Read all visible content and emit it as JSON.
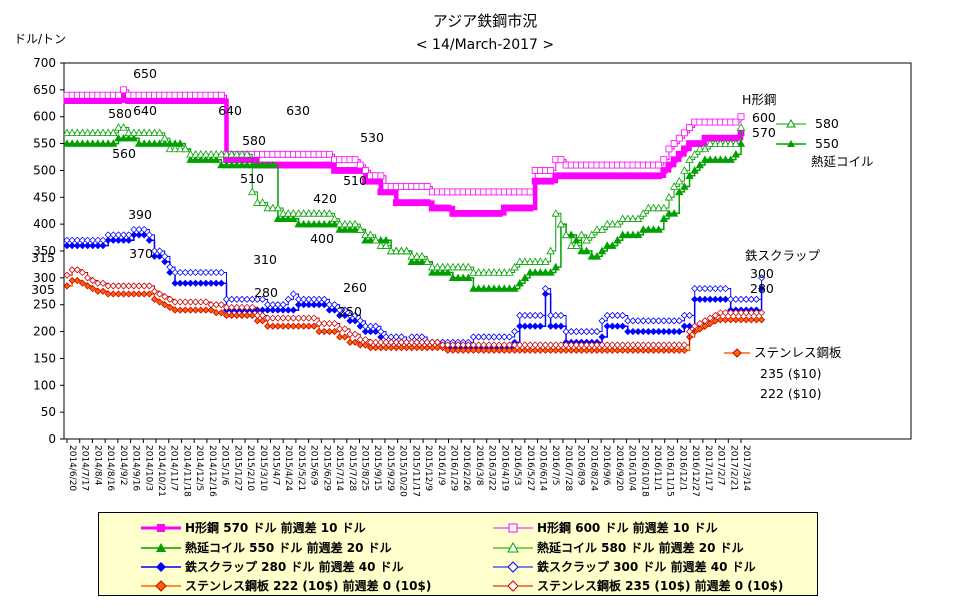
{
  "title": "アジア鉄鋼市況",
  "subtitle": "< 14/March-2017 >",
  "ylabel": "ドル/トン",
  "colors": {
    "h_beam": "#ff00ff",
    "hot_coil": "#00a000",
    "scrap": "#0000ff",
    "stainless": "#ff6600",
    "stainless_edge": "#cc0000",
    "legend_bg": "#ffffcc"
  },
  "chart_data": {
    "type": "line",
    "title": "アジア鉄鋼市況",
    "subtitle": "< 14/March-2017 >",
    "ylabel": "ドル/トン",
    "ylim": [
      0,
      700
    ],
    "yticks": [
      0,
      50,
      100,
      150,
      200,
      250,
      300,
      350,
      400,
      450,
      500,
      550,
      600,
      650,
      700
    ],
    "grid": false,
    "legend_position": "bottom",
    "x_tick_labels": [
      "2014/6/20",
      "2014/7/17",
      "2014/8/4",
      "2014/8/16",
      "2014/9/2",
      "2014/9/16",
      "2014/10/3",
      "2014/10/21",
      "2014/11/7",
      "2014/11/18",
      "2014/12/5",
      "2014/12/16",
      "2015/1/6",
      "2015/1/27",
      "2015/2/10",
      "2015/3/10",
      "2015/4/7",
      "2015/4/24",
      "2015/5/21",
      "2015/6/9",
      "2015/6/29",
      "2015/7/14",
      "2015/7/28",
      "2015/8/25",
      "2015/9/15",
      "2015/9/29",
      "2015/10/20",
      "2015/11/17",
      "2015/12/9",
      "2016/1/9",
      "2016/1/29",
      "2016/2/26",
      "2016/3/8",
      "2016/3/22",
      "2016/4/19",
      "2016/5/3",
      "2016/5/27",
      "2016/6/14",
      "2016/7/5",
      "2016/7/28",
      "2016/8/9",
      "2016/8/24",
      "2016/9/6",
      "2016/9/20",
      "2016/10/4",
      "2016/10/18",
      "2016/11/1",
      "2016/11/15",
      "2016/12/1",
      "2016/12/27",
      "2017/1/17",
      "2017/2/7",
      "2017/2/21",
      "2017/3/14"
    ],
    "series": [
      {
        "name": "H形鋼 570 ドル 前週差 10 ドル",
        "values": [
          630,
          630,
          630,
          630,
          630,
          630,
          630,
          630,
          630,
          630,
          630,
          640,
          630,
          630,
          630,
          630,
          630,
          630,
          630,
          630,
          630,
          630,
          630,
          630,
          630,
          630,
          630,
          630,
          630,
          630,
          630,
          520,
          520,
          520,
          520,
          520,
          520,
          510,
          510,
          510,
          510,
          510,
          510,
          510,
          510,
          510,
          510,
          510,
          510,
          510,
          510,
          510,
          500,
          500,
          500,
          500,
          500,
          500,
          480,
          480,
          480,
          460,
          460,
          460,
          440,
          440,
          440,
          440,
          440,
          440,
          440,
          430,
          430,
          430,
          430,
          420,
          420,
          420,
          420,
          420,
          420,
          420,
          420,
          420,
          420,
          430,
          430,
          430,
          430,
          430,
          430,
          480,
          480,
          480,
          480,
          490,
          490,
          490,
          490,
          490,
          490,
          490,
          490,
          490,
          490,
          490,
          490,
          490,
          490,
          490,
          490,
          490,
          490,
          490,
          490,
          490,
          500,
          510,
          520,
          530,
          540,
          550,
          550,
          550,
          560,
          560,
          560,
          560,
          560,
          560,
          560,
          570
        ]
      },
      {
        "name": "H形鋼 600 ドル 前週差 10 ドル",
        "values": [
          640,
          640,
          640,
          640,
          640,
          640,
          640,
          640,
          640,
          640,
          640,
          650,
          640,
          640,
          640,
          640,
          640,
          640,
          640,
          640,
          640,
          640,
          640,
          640,
          640,
          640,
          640,
          640,
          640,
          640,
          640,
          530,
          530,
          530,
          530,
          530,
          530,
          530,
          530,
          530,
          530,
          530,
          530,
          530,
          530,
          530,
          530,
          530,
          530,
          530,
          530,
          530,
          520,
          520,
          520,
          520,
          520,
          510,
          500,
          490,
          490,
          490,
          470,
          470,
          470,
          470,
          470,
          470,
          470,
          470,
          470,
          460,
          460,
          460,
          460,
          460,
          460,
          460,
          460,
          460,
          460,
          460,
          460,
          460,
          460,
          460,
          460,
          460,
          460,
          460,
          460,
          500,
          500,
          500,
          500,
          520,
          520,
          510,
          510,
          510,
          510,
          510,
          510,
          510,
          510,
          510,
          510,
          510,
          510,
          510,
          510,
          510,
          510,
          510,
          510,
          510,
          520,
          540,
          550,
          560,
          570,
          580,
          590,
          590,
          590,
          590,
          590,
          590,
          590,
          590,
          590,
          600
        ]
      },
      {
        "name": "熱延コイル 550 ドル 前週差 20 ドル",
        "values": [
          550,
          550,
          550,
          550,
          550,
          550,
          550,
          550,
          550,
          550,
          560,
          560,
          560,
          560,
          550,
          550,
          550,
          550,
          550,
          550,
          550,
          550,
          550,
          540,
          520,
          520,
          520,
          520,
          520,
          520,
          510,
          510,
          510,
          510,
          510,
          510,
          510,
          510,
          510,
          510,
          510,
          410,
          410,
          410,
          410,
          400,
          400,
          400,
          400,
          400,
          400,
          400,
          400,
          390,
          390,
          390,
          390,
          390,
          370,
          370,
          370,
          370,
          370,
          350,
          350,
          350,
          350,
          330,
          330,
          330,
          330,
          310,
          310,
          310,
          310,
          300,
          300,
          300,
          300,
          280,
          280,
          280,
          280,
          280,
          280,
          280,
          280,
          280,
          290,
          300,
          310,
          310,
          310,
          310,
          310,
          320,
          400,
          380,
          380,
          370,
          350,
          350,
          340,
          340,
          350,
          360,
          360,
          370,
          380,
          380,
          380,
          380,
          390,
          390,
          390,
          390,
          410,
          420,
          420,
          460,
          470,
          490,
          500,
          510,
          520,
          520,
          520,
          520,
          520,
          520,
          530,
          550
        ]
      },
      {
        "name": "熱延コイル 580 ドル 前週差 20 ドル",
        "values": [
          570,
          570,
          570,
          570,
          570,
          570,
          570,
          570,
          570,
          570,
          580,
          580,
          570,
          570,
          570,
          570,
          570,
          570,
          570,
          560,
          540,
          540,
          540,
          540,
          530,
          530,
          530,
          530,
          530,
          530,
          530,
          530,
          530,
          530,
          530,
          530,
          460,
          440,
          440,
          430,
          430,
          430,
          420,
          420,
          420,
          420,
          420,
          420,
          420,
          420,
          420,
          420,
          410,
          400,
          400,
          400,
          400,
          390,
          380,
          380,
          370,
          360,
          360,
          350,
          350,
          350,
          350,
          340,
          340,
          340,
          330,
          320,
          320,
          320,
          320,
          320,
          320,
          320,
          320,
          310,
          310,
          310,
          310,
          310,
          310,
          310,
          310,
          320,
          330,
          330,
          330,
          330,
          330,
          330,
          350,
          420,
          400,
          380,
          360,
          360,
          380,
          370,
          380,
          390,
          390,
          400,
          400,
          400,
          410,
          410,
          410,
          410,
          420,
          430,
          430,
          430,
          430,
          450,
          470,
          480,
          500,
          520,
          530,
          540,
          540,
          550,
          550,
          550,
          550,
          550,
          550,
          580
        ]
      },
      {
        "name": "鉄スクラップ 280 ドル 前週差 40 ドル",
        "values": [
          360,
          360,
          360,
          360,
          360,
          360,
          360,
          360,
          370,
          370,
          370,
          370,
          370,
          380,
          380,
          380,
          370,
          340,
          340,
          330,
          310,
          290,
          290,
          290,
          290,
          290,
          290,
          290,
          290,
          290,
          290,
          240,
          240,
          240,
          240,
          240,
          240,
          240,
          240,
          240,
          240,
          240,
          240,
          240,
          240,
          250,
          250,
          250,
          250,
          250,
          250,
          240,
          240,
          230,
          230,
          220,
          220,
          210,
          200,
          200,
          200,
          190,
          180,
          180,
          180,
          180,
          180,
          180,
          180,
          180,
          180,
          180,
          180,
          180,
          170,
          170,
          170,
          170,
          170,
          170,
          170,
          170,
          170,
          170,
          170,
          170,
          170,
          180,
          210,
          210,
          210,
          210,
          210,
          270,
          210,
          210,
          210,
          180,
          180,
          180,
          180,
          180,
          180,
          180,
          190,
          210,
          210,
          210,
          210,
          200,
          200,
          200,
          200,
          200,
          200,
          200,
          200,
          200,
          200,
          200,
          210,
          210,
          260,
          260,
          260,
          260,
          260,
          260,
          260,
          240,
          240,
          240,
          240,
          240,
          240,
          280
        ]
      },
      {
        "name": "鉄スクラップ 300 ドル 前週差 40 ドル",
        "values": [
          370,
          370,
          370,
          370,
          370,
          370,
          370,
          370,
          380,
          380,
          380,
          380,
          380,
          390,
          390,
          390,
          380,
          350,
          350,
          340,
          320,
          310,
          310,
          310,
          310,
          310,
          310,
          310,
          310,
          310,
          310,
          260,
          260,
          260,
          260,
          260,
          260,
          260,
          260,
          250,
          250,
          250,
          250,
          260,
          270,
          260,
          260,
          260,
          260,
          260,
          260,
          250,
          250,
          240,
          240,
          230,
          230,
          220,
          210,
          210,
          210,
          200,
          190,
          190,
          190,
          190,
          180,
          190,
          190,
          190,
          180,
          180,
          180,
          180,
          180,
          180,
          180,
          180,
          180,
          190,
          190,
          190,
          190,
          190,
          190,
          190,
          190,
          200,
          230,
          230,
          230,
          230,
          230,
          280,
          230,
          230,
          230,
          200,
          200,
          200,
          200,
          200,
          200,
          200,
          220,
          230,
          230,
          230,
          230,
          220,
          220,
          220,
          220,
          220,
          220,
          220,
          220,
          220,
          220,
          220,
          230,
          230,
          280,
          280,
          280,
          280,
          280,
          280,
          280,
          260,
          260,
          260,
          260,
          260,
          260,
          300
        ]
      },
      {
        "name": "ステンレス鋼板 222 (10$) 前週差 0 (10$)",
        "values": [
          285,
          295,
          295,
          290,
          285,
          280,
          275,
          275,
          270,
          270,
          270,
          270,
          270,
          270,
          270,
          270,
          270,
          260,
          255,
          250,
          245,
          240,
          240,
          240,
          240,
          240,
          240,
          240,
          240,
          235,
          235,
          230,
          230,
          230,
          230,
          230,
          230,
          220,
          220,
          210,
          210,
          210,
          210,
          210,
          210,
          210,
          210,
          210,
          210,
          200,
          200,
          200,
          200,
          190,
          190,
          180,
          180,
          175,
          175,
          170,
          170,
          170,
          170,
          170,
          170,
          170,
          170,
          170,
          170,
          170,
          170,
          170,
          170,
          170,
          165,
          165,
          165,
          165,
          165,
          165,
          165,
          165,
          165,
          165,
          165,
          165,
          165,
          165,
          165,
          165,
          165,
          165,
          165,
          165,
          165,
          165,
          165,
          165,
          165,
          165,
          165,
          165,
          165,
          165,
          165,
          165,
          165,
          165,
          165,
          165,
          165,
          165,
          165,
          165,
          165,
          165,
          165,
          165,
          165,
          165,
          165,
          190,
          200,
          205,
          210,
          215,
          220,
          222,
          222,
          222,
          222,
          222,
          222,
          222,
          222,
          222
        ]
      },
      {
        "name": "ステンレス鋼板 235 (10$) 前週差 0 (10$)",
        "values": [
          305,
          315,
          315,
          310,
          300,
          295,
          290,
          290,
          285,
          285,
          285,
          285,
          285,
          285,
          285,
          285,
          285,
          275,
          270,
          265,
          260,
          255,
          255,
          255,
          255,
          255,
          255,
          255,
          250,
          250,
          250,
          245,
          245,
          245,
          245,
          245,
          245,
          230,
          230,
          225,
          225,
          225,
          225,
          225,
          225,
          225,
          225,
          225,
          225,
          215,
          215,
          215,
          215,
          205,
          205,
          195,
          195,
          185,
          185,
          180,
          180,
          180,
          180,
          180,
          180,
          180,
          180,
          180,
          180,
          180,
          180,
          180,
          180,
          175,
          175,
          175,
          175,
          175,
          175,
          175,
          175,
          175,
          175,
          175,
          175,
          175,
          175,
          175,
          175,
          175,
          175,
          175,
          175,
          175,
          175,
          175,
          175,
          175,
          175,
          175,
          175,
          175,
          175,
          175,
          175,
          175,
          175,
          175,
          175,
          175,
          175,
          175,
          175,
          175,
          175,
          175,
          175,
          175,
          175,
          175,
          175,
          200,
          210,
          215,
          220,
          225,
          230,
          235,
          235,
          235,
          235,
          235,
          235,
          235,
          235,
          235
        ]
      }
    ],
    "annotations": [
      "650",
      "640",
      "640",
      "630",
      "580",
      "560",
      "580",
      "510",
      "530",
      "510",
      "420",
      "400",
      "390",
      "370",
      "310",
      "315",
      "305",
      "280",
      "260",
      "250",
      "H形鋼",
      "600",
      "570",
      "580",
      "550",
      "熱延コイル",
      "鉄スクラップ",
      "300",
      "280",
      "ステンレス鋼板",
      "235 ($10)",
      "222 ($10)"
    ]
  }
}
